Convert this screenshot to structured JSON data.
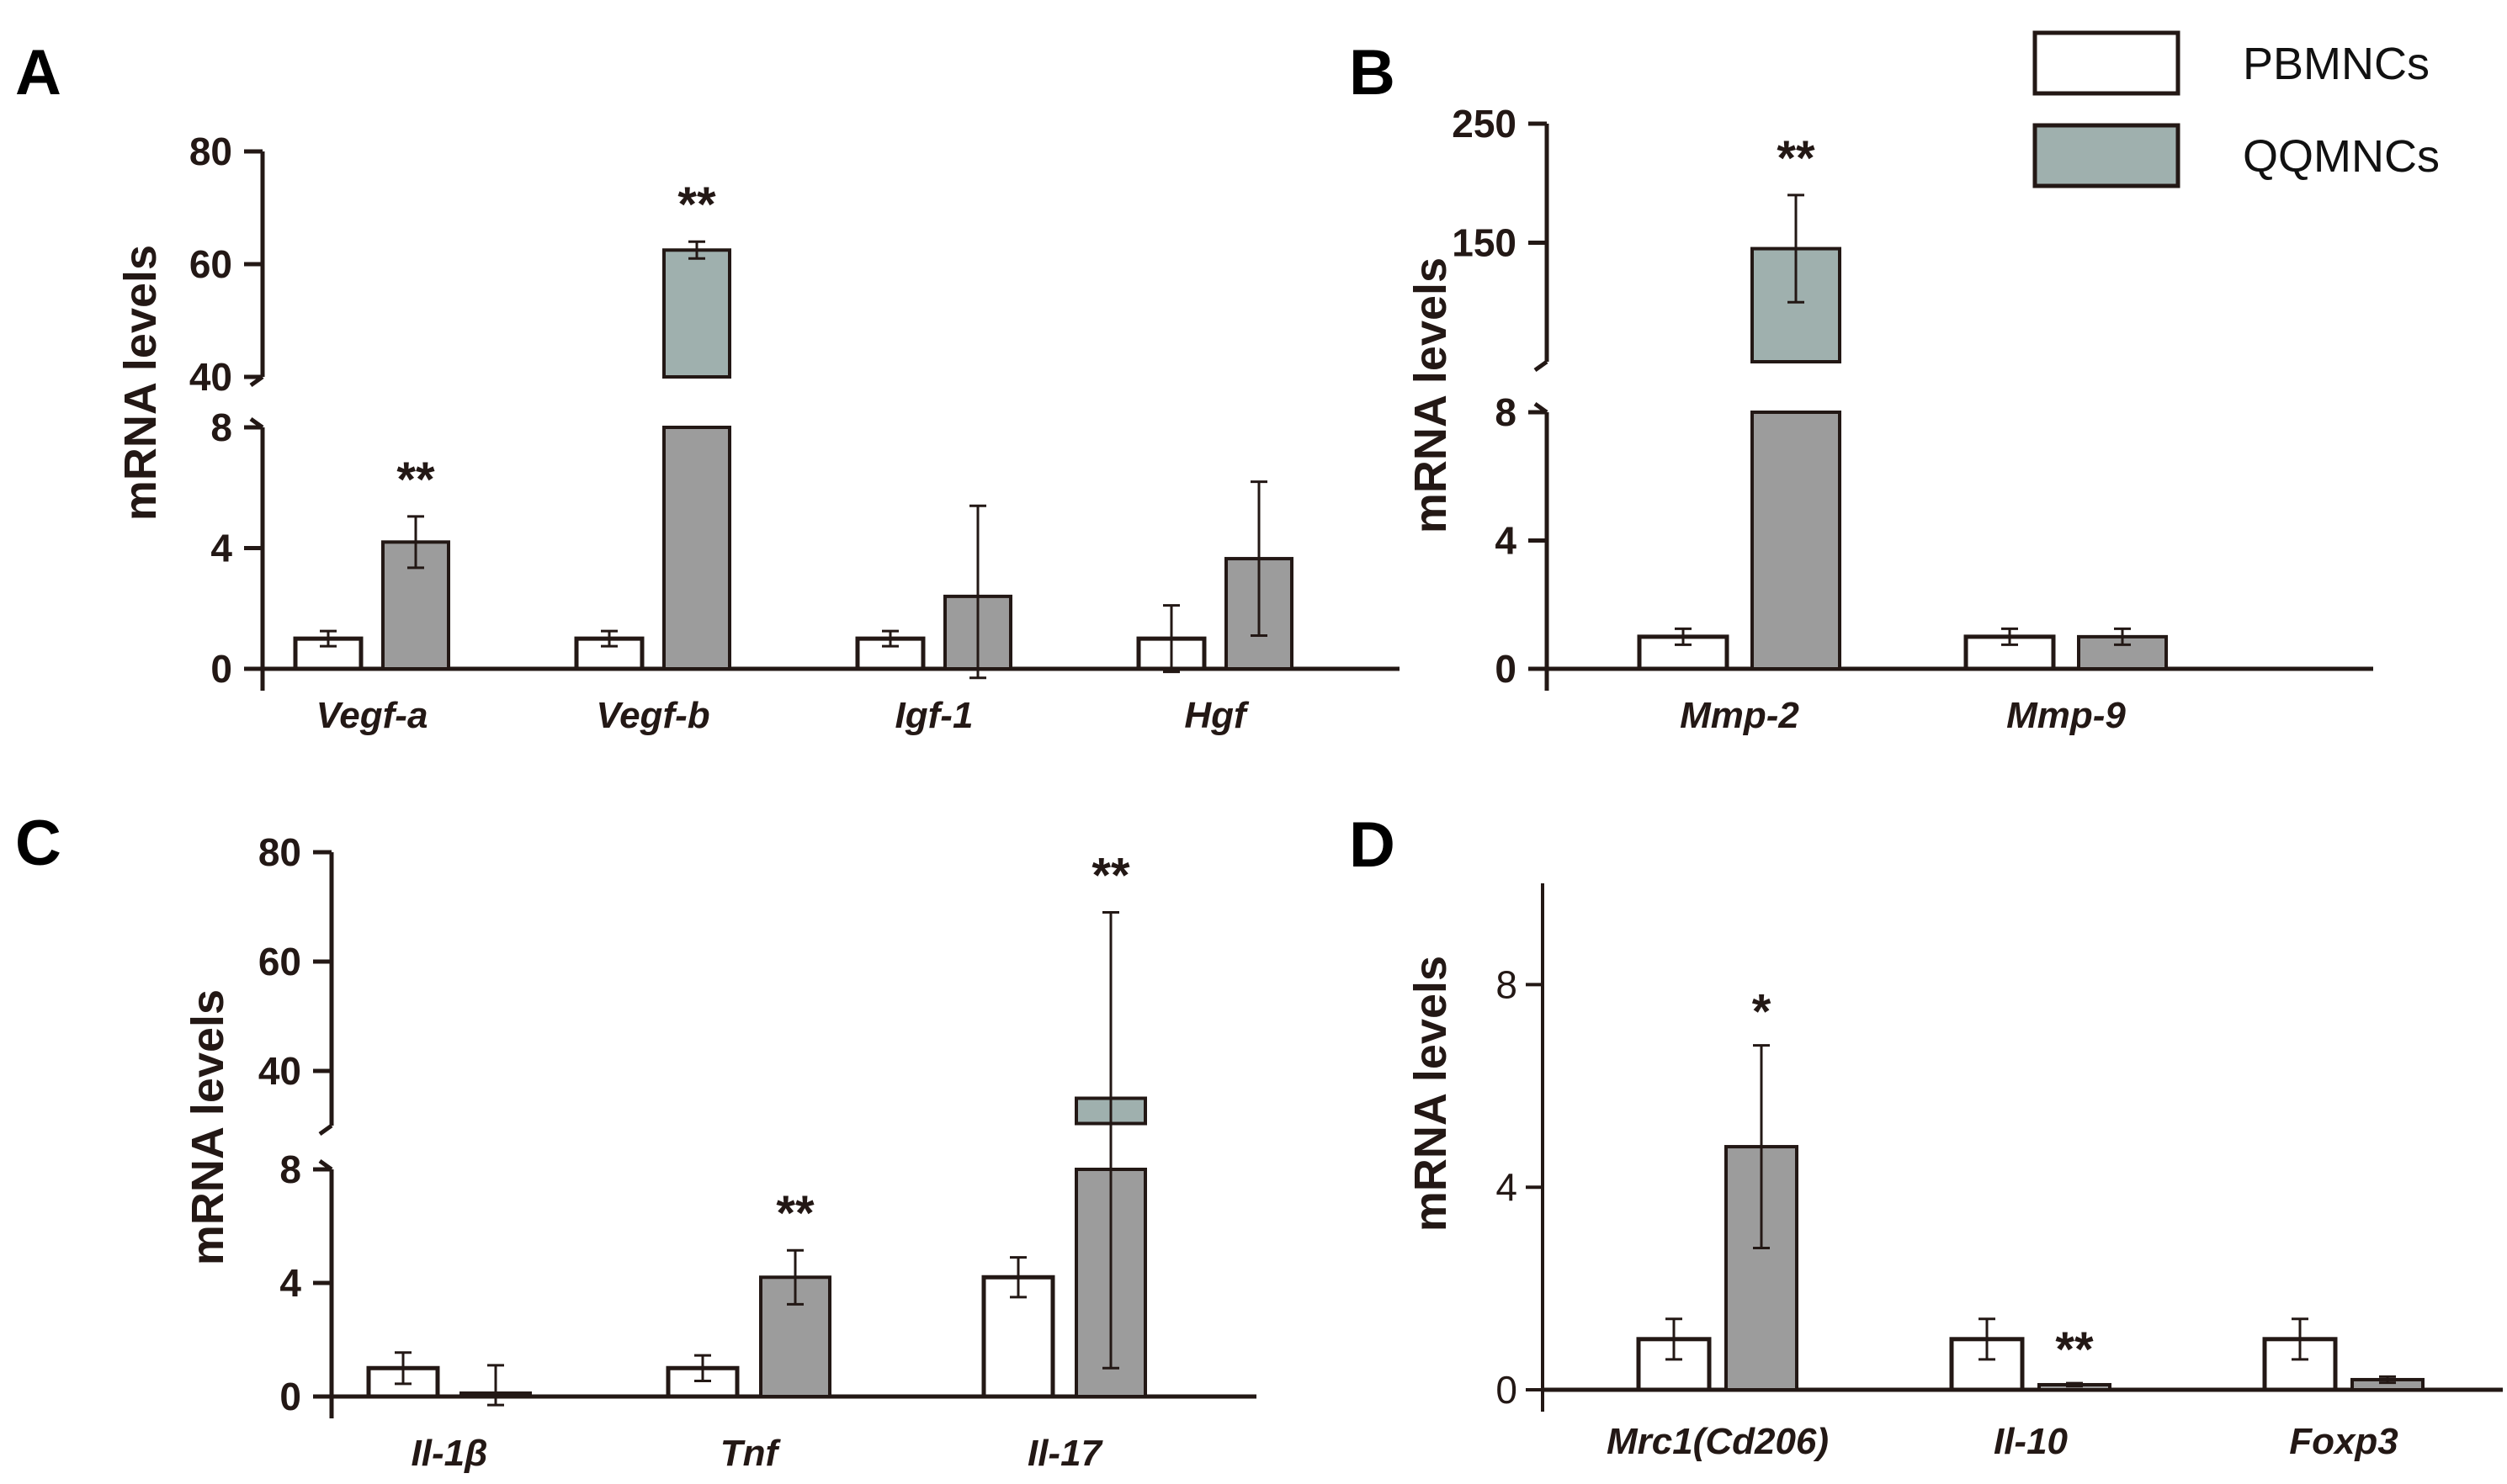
{
  "legend": {
    "entries": [
      {
        "name": "PBMNCs",
        "color": "#ffffff"
      },
      {
        "name": "QQMNCs",
        "color": "#9fb0ae"
      }
    ]
  },
  "colors": {
    "pbmnc": "#ffffff",
    "qqmnc_low": "#9c9c9c",
    "qqmnc_high": "#9fb0ae",
    "axis": "#231815"
  },
  "chart_data": [
    {
      "panel": "A",
      "type": "bar",
      "ylabel": "mRNA levels",
      "broken_axis": true,
      "lower_ylim": [
        0,
        8
      ],
      "upper_ylim": [
        40,
        80
      ],
      "lower_ticks": [
        0,
        4,
        8
      ],
      "upper_ticks": [
        40,
        60,
        80
      ],
      "categories": [
        "Vegf-a",
        "Vegf-b",
        "Igf-1",
        "Hgf"
      ],
      "series": [
        {
          "name": "PBMNCs",
          "values": [
            1,
            1,
            1,
            1
          ],
          "errors": [
            0.25,
            0.25,
            0.25,
            1.1
          ]
        },
        {
          "name": "QQMNCs",
          "values": [
            4.2,
            62.5,
            2.4,
            3.65
          ],
          "errors": [
            0.85,
            1.5,
            3.0,
            2.55
          ]
        }
      ],
      "significance": [
        "**",
        "**",
        "",
        ""
      ]
    },
    {
      "panel": "B",
      "type": "bar",
      "ylabel": "mRNA levels",
      "broken_axis": true,
      "lower_ylim": [
        0,
        8
      ],
      "upper_ylim": [
        50,
        250
      ],
      "lower_ticks": [
        0,
        4,
        8
      ],
      "upper_ticks": [
        150,
        250
      ],
      "categories": [
        "Mmp-2",
        "Mmp-9"
      ],
      "series": [
        {
          "name": "PBMNCs",
          "values": [
            1,
            1
          ],
          "errors": [
            0.25,
            0.25
          ]
        },
        {
          "name": "QQMNCs",
          "values": [
            145,
            1
          ],
          "errors": [
            45,
            0.25
          ]
        }
      ],
      "significance": [
        "**",
        ""
      ]
    },
    {
      "panel": "C",
      "type": "bar",
      "ylabel": "mRNA levels",
      "broken_axis": true,
      "lower_ylim": [
        0,
        8
      ],
      "upper_ylim": [
        30,
        80
      ],
      "lower_ticks": [
        0,
        4,
        8
      ],
      "upper_ticks": [
        40,
        60,
        80
      ],
      "categories": [
        "Il-1β",
        "Tnf",
        "Il-17"
      ],
      "series": [
        {
          "name": "PBMNCs",
          "values": [
            1,
            1,
            4.2
          ],
          "errors": [
            0.55,
            0.45,
            0.7
          ]
        },
        {
          "name": "QQMNCs",
          "values": [
            0.1,
            4.2,
            35
          ],
          "errors": [
            1.0,
            0.95,
            34
          ]
        }
      ],
      "significance": [
        "",
        "**",
        "**"
      ]
    },
    {
      "panel": "D",
      "type": "bar",
      "ylabel": "mRNA levels",
      "broken_axis": false,
      "ylim": [
        0,
        10
      ],
      "ticks": [
        0,
        4,
        8
      ],
      "categories": [
        "Mrc1(Cd206)",
        "Il-10",
        "Foxp3"
      ],
      "series": [
        {
          "name": "PBMNCs",
          "values": [
            1,
            1,
            1
          ],
          "errors": [
            0.4,
            0.4,
            0.4
          ]
        },
        {
          "name": "QQMNCs",
          "values": [
            4.8,
            0.1,
            0.2
          ],
          "errors": [
            2.0,
            0.03,
            0.06
          ]
        }
      ],
      "significance": [
        "*",
        "**",
        ""
      ]
    }
  ]
}
